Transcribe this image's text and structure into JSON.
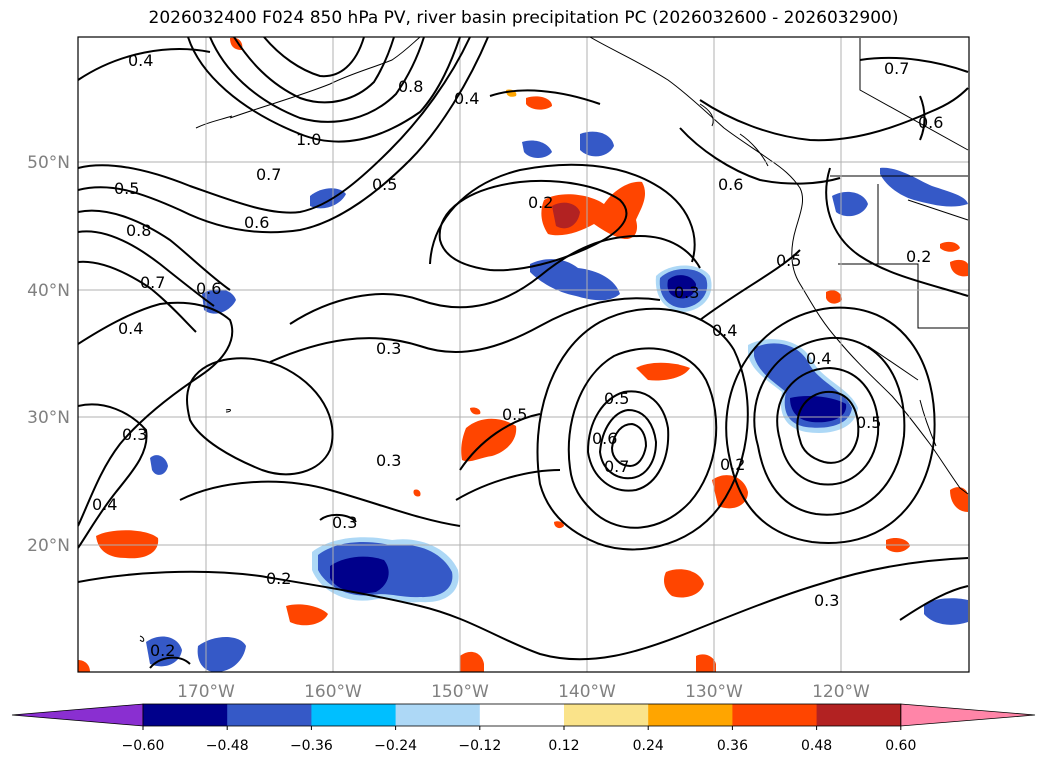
{
  "title": "2026032400 F024 850 hPa PV, river basin precipitation PC (2026032600 - 2026032900)",
  "lat_labels": [
    "50°N",
    "40°N",
    "30°N",
    "20°N"
  ],
  "lon_labels": [
    "170°W",
    "160°W",
    "150°W",
    "140°W",
    "130°W",
    "120°W"
  ],
  "contour_labels": [
    "0.4",
    "0.8",
    "1.0",
    "0.4",
    "0.7",
    "0.6",
    "0.5",
    "0.8",
    "0.7",
    "0.6",
    "0.4",
    "0.5",
    "0.2",
    "0.6",
    "0.5",
    "0.3",
    "0.3",
    "0.4",
    "0.3",
    "0.5",
    "0.3",
    "0.4",
    "0.5",
    "0.6",
    "0.7",
    "0.2",
    "0.3",
    "0.2",
    "0.4",
    "0.5",
    "0.7",
    "0.6",
    "0.2",
    "0.3",
    "0.2"
  ],
  "colorbar": {
    "ticks": [
      "−0.60",
      "−0.48",
      "−0.36",
      "−0.24",
      "−0.12",
      "0.12",
      "0.24",
      "0.36",
      "0.48",
      "0.60"
    ],
    "colors": [
      "#8a2fd1",
      "#00008b",
      "#3559c7",
      "#00bfff",
      "#add8f6",
      "#ffffff",
      "#fae38a",
      "#ffa500",
      "#ff4500",
      "#b22222",
      "#ff85a8"
    ]
  },
  "legend": {
    "under_color": "#8a2fd1",
    "over_color": "#ff85a8"
  }
}
